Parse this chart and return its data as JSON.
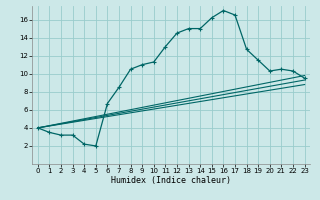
{
  "xlabel": "Humidex (Indice chaleur)",
  "bg_color": "#cce8e8",
  "grid_color": "#99cccc",
  "line_color": "#006666",
  "xlim": [
    -0.5,
    23.5
  ],
  "ylim": [
    0,
    17.5
  ],
  "xticks": [
    0,
    1,
    2,
    3,
    4,
    5,
    6,
    7,
    8,
    9,
    10,
    11,
    12,
    13,
    14,
    15,
    16,
    17,
    18,
    19,
    20,
    21,
    22,
    23
  ],
  "yticks": [
    2,
    4,
    6,
    8,
    10,
    12,
    14,
    16
  ],
  "curve1_x": [
    0,
    1,
    2,
    3,
    4,
    5,
    6,
    7,
    8,
    9,
    10,
    11,
    12,
    13,
    14,
    15,
    16,
    17,
    18,
    19,
    20,
    21,
    22,
    23
  ],
  "curve1_y": [
    4.0,
    3.5,
    3.2,
    3.2,
    2.2,
    2.0,
    6.7,
    8.5,
    10.5,
    11.0,
    11.3,
    13.0,
    14.5,
    15.0,
    15.0,
    16.2,
    17.0,
    16.5,
    12.7,
    11.5,
    10.3,
    10.5,
    10.3,
    9.5
  ],
  "line1_x": [
    0,
    23
  ],
  "line1_y": [
    4.0,
    9.3
  ],
  "line2_x": [
    0,
    23
  ],
  "line2_y": [
    4.0,
    8.8
  ],
  "line3_x": [
    0,
    23
  ],
  "line3_y": [
    4.0,
    9.8
  ]
}
